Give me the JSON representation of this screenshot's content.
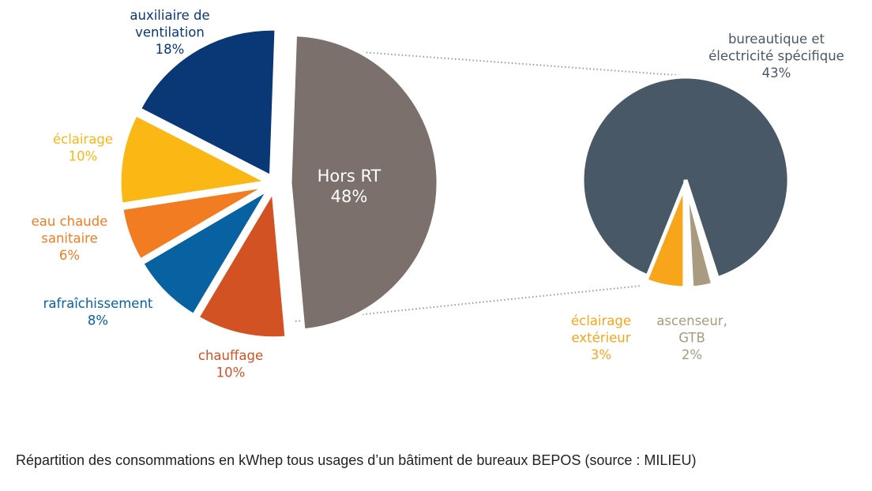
{
  "caption": "Répartition des consommations en kWhep tous usages d’un bâtiment de bureaux BEPOS (source : MILIEU)",
  "chart_data": [
    {
      "type": "pie",
      "slices": [
        {
          "label_lines": [
            "Hors RT"
          ],
          "value": 48,
          "value_label": "48%",
          "color": "#7b706b",
          "label_color": "#ffffff"
        },
        {
          "label_lines": [
            "chauffage"
          ],
          "value": 10,
          "value_label": "10%",
          "color": "#d25223",
          "label_color": "#d25223"
        },
        {
          "label_lines": [
            "rafraîchissement"
          ],
          "value": 8,
          "value_label": "8%",
          "color": "#0861a0",
          "label_color": "#0861a0"
        },
        {
          "label_lines": [
            "eau chaude",
            "sanitaire"
          ],
          "value": 6,
          "value_label": "6%",
          "color": "#f27c22",
          "label_color": "#f27c22"
        },
        {
          "label_lines": [
            "éclairage"
          ],
          "value": 10,
          "value_label": "10%",
          "color": "#fbb714",
          "label_color": "#fbb714"
        },
        {
          "label_lines": [
            "auxiliaire de",
            "ventilation"
          ],
          "value": 18,
          "value_label": "18%",
          "color": "#0a3775",
          "label_color": "#0a3775"
        }
      ]
    },
    {
      "type": "pie",
      "slices": [
        {
          "label_lines": [
            "bureautique et",
            "électricité spécifique"
          ],
          "value": 43,
          "value_label": "43%",
          "color": "#495867",
          "label_color": "#495867"
        },
        {
          "label_lines": [
            "ascenseur,",
            "GTB"
          ],
          "value": 2,
          "value_label": "2%",
          "color": "#a89b7f",
          "label_color": "#a89b7f"
        },
        {
          "label_lines": [
            "éclairage",
            "extérieur"
          ],
          "value": 3,
          "value_label": "3%",
          "color": "#f8a51b",
          "label_color": "#f8a51b"
        }
      ]
    }
  ]
}
